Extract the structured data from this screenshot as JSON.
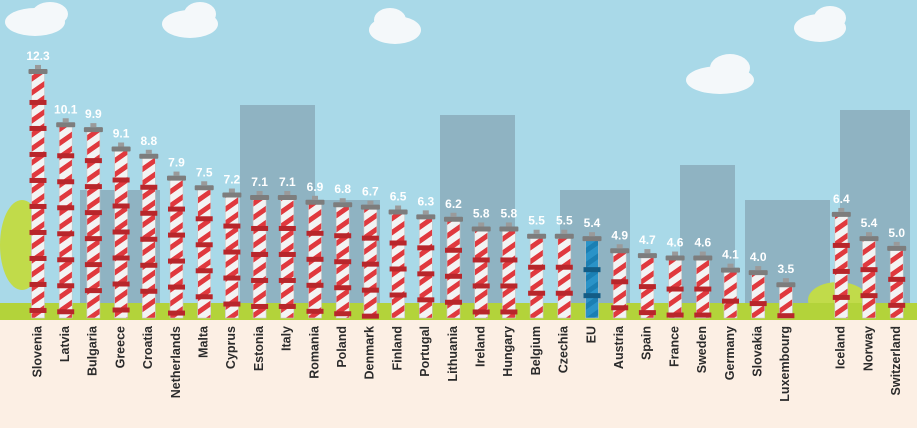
{
  "chart_data": {
    "type": "pipes",
    "categories": [
      "Slovenia",
      "Latvia",
      "Bulgaria",
      "Greece",
      "Croatia",
      "Netherlands",
      "Malta",
      "Cyprus",
      "Estonia",
      "Italy",
      "Romania",
      "Poland",
      "Denmark",
      "Finland",
      "Portugal",
      "Lithuania",
      "Ireland",
      "Hungary",
      "Belgium",
      "Czechia",
      "EU",
      "Austria",
      "Spain",
      "France",
      "Sweden",
      "Germany",
      "Slovakia",
      "Luxembourg",
      "Iceland",
      "Norway",
      "Switzerland"
    ],
    "values": [
      12.3,
      10.1,
      9.9,
      9.1,
      8.8,
      7.9,
      7.5,
      7.2,
      7.1,
      7.1,
      6.9,
      6.8,
      6.7,
      6.5,
      6.3,
      6.2,
      5.8,
      5.8,
      5.5,
      5.5,
      5.4,
      4.9,
      4.7,
      4.6,
      4.6,
      4.1,
      4.0,
      3.5,
      6.4,
      5.4,
      5.0
    ],
    "value_labels": [
      "12.3",
      "10.1",
      "9.9",
      "9.1",
      "8.8",
      "7.9",
      "7.5",
      "7.2",
      "7.1",
      "7.1",
      "6.9",
      "6.8",
      "6.7",
      "6.5",
      "6.3",
      "6.2",
      "5.8",
      "5.8",
      "5.5",
      "5.5",
      "5.4",
      "4.9",
      "4.7",
      "4.6",
      "4.6",
      "4.1",
      "4.0",
      "3.5",
      "6.4",
      "5.4",
      "5.0"
    ],
    "colors": [
      "#e0393e",
      "#e0393e",
      "#e0393e",
      "#e0393e",
      "#e0393e",
      "#e0393e",
      "#e0393e",
      "#e0393e",
      "#e0393e",
      "#e0393e",
      "#e0393e",
      "#e0393e",
      "#e0393e",
      "#e0393e",
      "#e0393e",
      "#e0393e",
      "#e0393e",
      "#e0393e",
      "#e0393e",
      "#e0393e",
      "#1b7fb3",
      "#e0393e",
      "#e0393e",
      "#e0393e",
      "#e0393e",
      "#e0393e",
      "#e0393e",
      "#e0393e",
      "#e0393e",
      "#e0393e",
      "#e0393e"
    ],
    "ylim": [
      0,
      13
    ]
  }
}
